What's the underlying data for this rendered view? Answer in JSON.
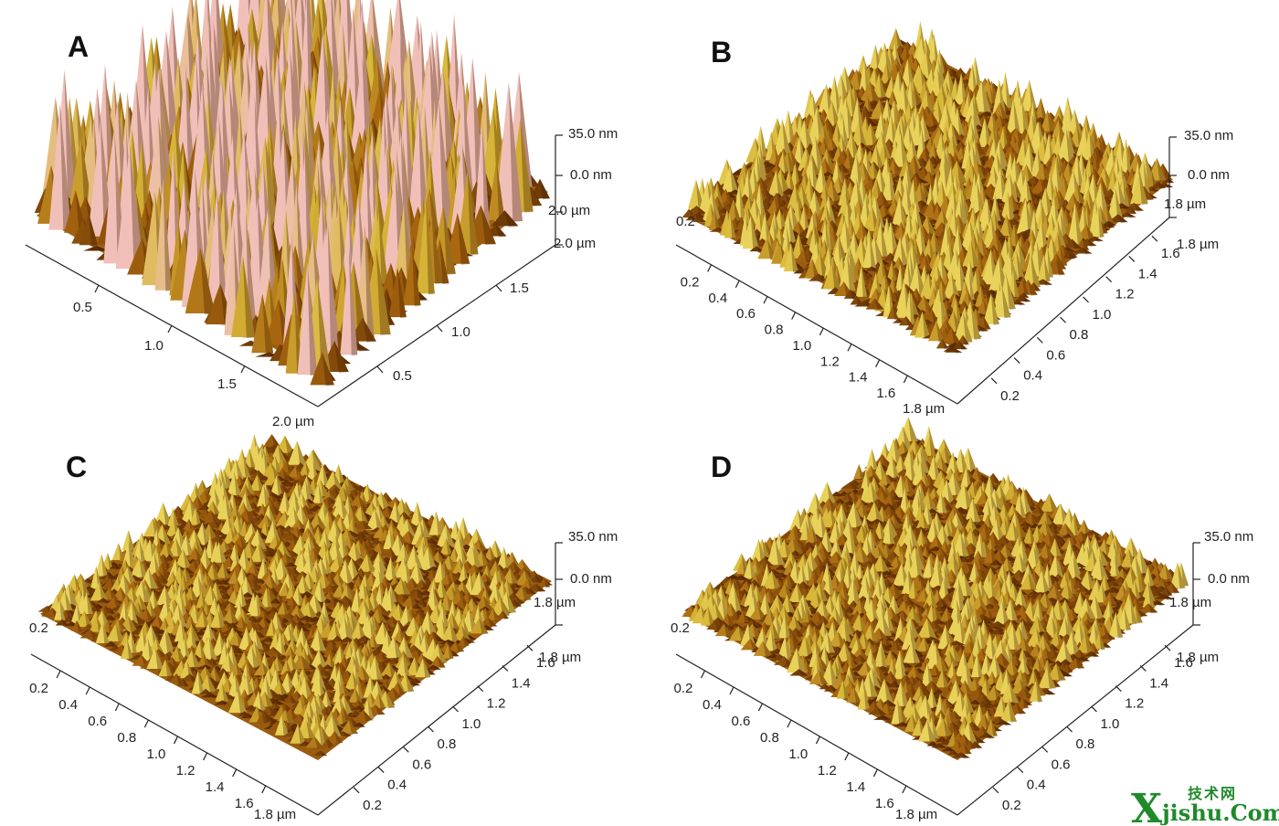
{
  "panels": [
    {
      "label": "A",
      "z_top": "35.0 nm",
      "z_zero": "0.0 nm",
      "left_axis_ticks": [
        "0.5",
        "1.0",
        "1.5"
      ],
      "left_axis_end": "2.0 µm",
      "right_axis_ticks": [
        "0.5",
        "1.0",
        "1.5"
      ],
      "right_axis_end": "2.0 µm",
      "back_axis_end": "2.0 µm",
      "roughness": 1.0
    },
    {
      "label": "B",
      "z_top": "35.0 nm",
      "z_zero": "0.0 nm",
      "left_axis_ticks": [
        "0.2",
        "0.4",
        "0.6",
        "0.8",
        "1.0",
        "1.2",
        "1.4",
        "1.6"
      ],
      "left_axis_end": "1.8 µm",
      "right_axis_ticks": [
        "0.2",
        "0.4",
        "0.6",
        "0.8",
        "1.0",
        "1.2",
        "1.4",
        "1.6"
      ],
      "right_axis_end": "1.8 µm",
      "back_axis_end": "1.8 µm",
      "corner_label": "0.2",
      "roughness": 0.55
    },
    {
      "label": "C",
      "z_top": "35.0 nm",
      "z_zero": "0.0 nm",
      "left_axis_ticks": [
        "0.2",
        "0.4",
        "0.6",
        "0.8",
        "1.0",
        "1.2",
        "1.4",
        "1.6"
      ],
      "left_axis_end": "1.8 µm",
      "right_axis_ticks": [
        "0.2",
        "0.4",
        "0.6",
        "0.8",
        "1.0",
        "1.2",
        "1.4",
        "1.6"
      ],
      "right_axis_end": "1.8 µm",
      "back_axis_end": "1.8 µm",
      "corner_label": "0.2",
      "roughness": 0.4
    },
    {
      "label": "D",
      "z_top": "35.0 nm",
      "z_zero": "0.0 nm",
      "left_axis_ticks": [
        "0.2",
        "0.4",
        "0.6",
        "0.8",
        "1.0",
        "1.2",
        "1.4",
        "1.6"
      ],
      "left_axis_end": "1.8 µm",
      "right_axis_ticks": [
        "0.2",
        "0.4",
        "0.6",
        "0.8",
        "1.0",
        "1.2",
        "1.4",
        "1.6"
      ],
      "right_axis_end": "1.8 µm",
      "back_axis_end": "1.8 µm",
      "corner_label": "0.2",
      "roughness": 0.42
    }
  ],
  "watermark": {
    "x_letter": "X",
    "domain": "jishu.Com",
    "chinese": "技术网"
  },
  "colors": {
    "surface_dark": "#5a2a05",
    "surface_mid": "#a8660f",
    "surface_light": "#d9b93a",
    "surface_peak": "#f0c0b8",
    "watermark": "#1f8a2a"
  }
}
